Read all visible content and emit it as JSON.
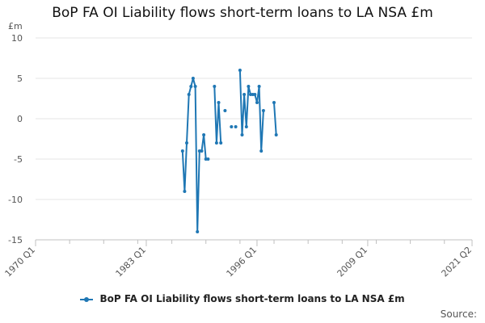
{
  "title": "BoP FA OI Liability flows short-term loans to LA NSA £m",
  "source_label": "Source:",
  "colors": {
    "series": "#1f77b4",
    "grid": "#e6e6e6",
    "axis": "#c0c0c0",
    "tick_text": "#555555"
  },
  "chart_data": {
    "type": "line",
    "title": "BoP FA OI Liability flows short-term loans to LA NSA £m",
    "xlabel": "",
    "ylabel": "£m",
    "x_ticks": [
      "1970 Q1",
      "1983 Q1",
      "1996 Q1",
      "2009 Q1",
      "2021 Q2"
    ],
    "xlim": [
      "1970 Q1",
      "2021 Q2"
    ],
    "y_ticks": [
      10,
      5,
      0,
      -5,
      -10,
      -15
    ],
    "ylim": [
      -15,
      10
    ],
    "grid": true,
    "legend_position": "bottom",
    "series": [
      {
        "name": "BoP FA OI Liability flows short-term loans to LA NSA £m",
        "segments": [
          [
            [
              "1987 Q2",
              -4
            ],
            [
              "1987 Q3",
              -9
            ],
            [
              "1987 Q4",
              -3
            ],
            [
              "1988 Q1",
              3
            ],
            [
              "1988 Q2",
              4
            ],
            [
              "1988 Q3",
              5
            ],
            [
              "1988 Q4",
              4
            ],
            [
              "1989 Q1",
              -14
            ],
            [
              "1989 Q2",
              -4
            ],
            [
              "1989 Q3",
              -4
            ],
            [
              "1989 Q4",
              -2
            ],
            [
              "1990 Q1",
              -5
            ],
            [
              "1990 Q2",
              -5
            ]
          ],
          [
            [
              "1991 Q1",
              4
            ],
            [
              "1991 Q2",
              -3
            ],
            [
              "1991 Q3",
              2
            ],
            [
              "1991 Q4",
              -3
            ]
          ],
          [
            [
              "1992 Q2",
              1
            ]
          ],
          [
            [
              "1993 Q1",
              -1
            ]
          ],
          [
            [
              "1993 Q3",
              -1
            ]
          ],
          [
            [
              "1994 Q1",
              6
            ],
            [
              "1994 Q2",
              -2
            ],
            [
              "1994 Q3",
              3
            ],
            [
              "1994 Q4",
              -1
            ],
            [
              "1995 Q1",
              4
            ],
            [
              "1995 Q2",
              3
            ],
            [
              "1995 Q3",
              3
            ],
            [
              "1995 Q4",
              3
            ],
            [
              "1996 Q1",
              2
            ],
            [
              "1996 Q2",
              4
            ],
            [
              "1996 Q3",
              -4
            ],
            [
              "1996 Q4",
              1
            ]
          ],
          [
            [
              "1998 Q1",
              2
            ],
            [
              "1998 Q2",
              -2
            ]
          ]
        ]
      }
    ]
  }
}
